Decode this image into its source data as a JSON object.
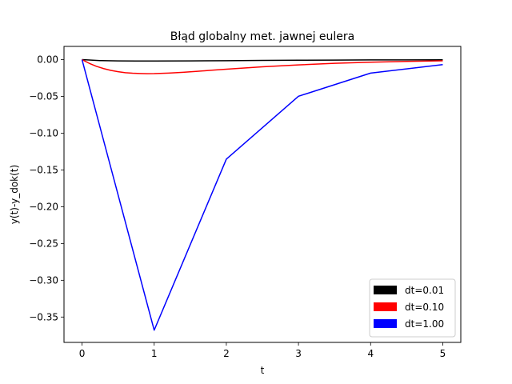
{
  "chart_data": {
    "type": "line",
    "title": "Błąd globalny met. jawnej eulera",
    "xlabel": "t",
    "ylabel": "y(t)-y_dok(t)",
    "xlim": [
      -0.25,
      5.25
    ],
    "ylim": [
      -0.3845,
      0.018
    ],
    "xticks": [
      0,
      1,
      2,
      3,
      4,
      5
    ],
    "xtick_labels": [
      "0",
      "1",
      "2",
      "3",
      "4",
      "5"
    ],
    "yticks": [
      0.0,
      -0.05,
      -0.1,
      -0.15,
      -0.2,
      -0.25,
      -0.3,
      -0.35
    ],
    "ytick_labels": [
      "0.00",
      "−0.05",
      "−0.10",
      "−0.15",
      "−0.20",
      "−0.25",
      "−0.30",
      "−0.35"
    ],
    "grid": false,
    "legend_position": "lower-right",
    "series": [
      {
        "name": "dt=0.01",
        "color": "#000000",
        "x": [
          0,
          0.25,
          0.5,
          0.75,
          1,
          1.5,
          2,
          2.5,
          3,
          3.5,
          4,
          4.5,
          5
        ],
        "y": [
          0,
          -0.0013,
          -0.0017,
          -0.0018,
          -0.0018,
          -0.0017,
          -0.0014,
          -0.0011,
          -0.0008,
          -0.0006,
          -0.0004,
          -0.0003,
          -0.0002
        ]
      },
      {
        "name": "dt=0.10",
        "color": "#ff0000",
        "x": [
          0,
          0.1,
          0.2,
          0.3,
          0.4,
          0.5,
          0.6,
          0.7,
          0.8,
          0.9,
          1.0,
          1.2,
          1.4,
          1.6,
          1.8,
          2.0,
          2.5,
          3.0,
          3.5,
          4.0,
          4.5,
          5.0
        ],
        "y": [
          0,
          -0.005,
          -0.0091,
          -0.0122,
          -0.0146,
          -0.0164,
          -0.0177,
          -0.0185,
          -0.0189,
          -0.0191,
          -0.019,
          -0.0183,
          -0.0172,
          -0.0159,
          -0.0144,
          -0.013,
          -0.0098,
          -0.0071,
          -0.005,
          -0.0035,
          -0.0024,
          -0.0016
        ]
      },
      {
        "name": "dt=1.00",
        "color": "#0000ff",
        "x": [
          0,
          1,
          2,
          3,
          4,
          5
        ],
        "y": [
          0,
          -0.3679,
          -0.1353,
          -0.0498,
          -0.0183,
          -0.0067
        ]
      }
    ]
  }
}
